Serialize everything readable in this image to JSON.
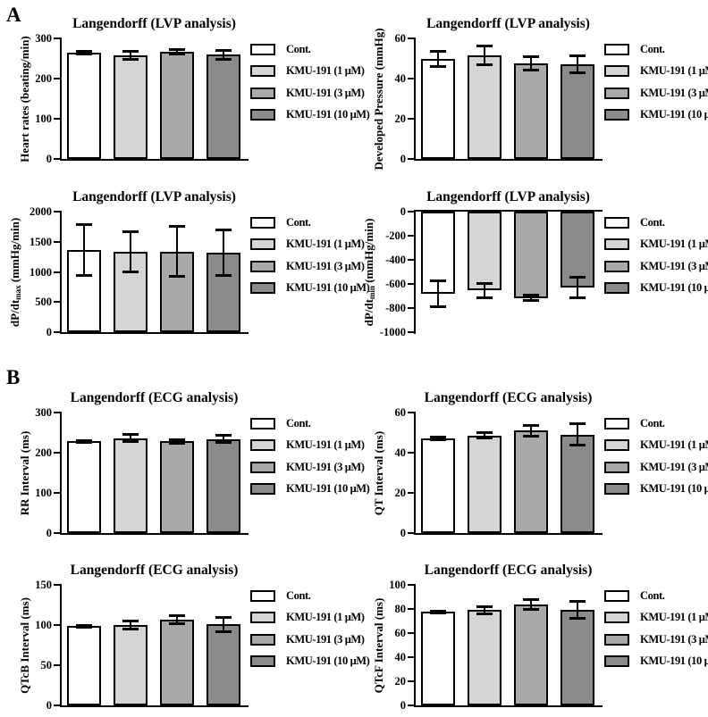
{
  "figure": {
    "panel_a_label": "A",
    "panel_b_label": "B"
  },
  "series": [
    {
      "name": "Cont.",
      "fill": "#FFFFFF"
    },
    {
      "name": "KMU-191 (1 μM)",
      "fill": "#D5D5D5"
    },
    {
      "name": "KMU-191 (3 μM)",
      "fill": "#A9A9A9"
    },
    {
      "name": "KMU-191 (10 μM)",
      "fill": "#8B8B8B"
    }
  ],
  "style": {
    "bar_border_color": "#000000",
    "axis_color": "#000000",
    "background": "#FFFFFF",
    "legend_position": "right",
    "grid": "off"
  },
  "chart_data": [
    {
      "id": "heart-rate",
      "panel": "A",
      "type": "bar",
      "title": "Langendorff (LVP analysis)",
      "ylabel_parts": [
        {
          "t": "Heart rates (beating/min)"
        }
      ],
      "ylabel_text": "Heart rates (beating/min)",
      "ylim": [
        0,
        300
      ],
      "yticks": [
        0,
        100,
        200,
        300
      ],
      "categories": [
        "Cont.",
        "KMU-191 (1 μM)",
        "KMU-191 (3 μM)",
        "KMU-191 (10 μM)"
      ],
      "values": [
        265,
        258,
        266,
        259
      ],
      "errors": [
        4,
        12,
        7,
        12
      ]
    },
    {
      "id": "developed-pressure",
      "panel": "A",
      "type": "bar",
      "title": "Langendorff (LVP analysis)",
      "ylabel_parts": [
        {
          "t": "Developed Pressure (mmHg)"
        }
      ],
      "ylabel_text": "Developed Pressure (mmHg)",
      "ylim": [
        0,
        60
      ],
      "yticks": [
        0,
        20,
        40,
        60
      ],
      "categories": [
        "Cont.",
        "KMU-191 (1 μM)",
        "KMU-191 (3 μM)",
        "KMU-191 (10 μM)"
      ],
      "values": [
        50,
        51.5,
        47.5,
        47
      ],
      "errors": [
        4,
        5,
        3.5,
        4.5
      ]
    },
    {
      "id": "dpdt-max",
      "panel": "A",
      "type": "bar",
      "title": "Langendorff (LVP analysis)",
      "ylabel_parts": [
        {
          "t": "dP/dt"
        },
        {
          "t": "max",
          "sub": true
        },
        {
          "t": " (mmHg/min)"
        }
      ],
      "ylabel_text": "dP/dt max (mmHg/min)",
      "ylim": [
        0,
        2000
      ],
      "yticks": [
        0,
        500,
        1000,
        1500,
        2000
      ],
      "categories": [
        "Cont.",
        "KMU-191 (1 μM)",
        "KMU-191 (3 μM)",
        "KMU-191 (10 μM)"
      ],
      "values": [
        1360,
        1335,
        1340,
        1320
      ],
      "errors": [
        430,
        335,
        420,
        380
      ]
    },
    {
      "id": "dpdt-min",
      "panel": "A",
      "type": "bar",
      "title": "Langendorff (LVP analysis)",
      "ylabel_parts": [
        {
          "t": "dP/dt"
        },
        {
          "t": "min",
          "sub": true
        },
        {
          "t": " (mmHg/min)"
        }
      ],
      "ylabel_text": "dP/dt min (mmHg/min)",
      "ylim": [
        -1000,
        0
      ],
      "yticks": [
        0,
        -200,
        -400,
        -600,
        -800,
        -1000
      ],
      "categories": [
        "Cont.",
        "KMU-191 (1 μM)",
        "KMU-191 (3 μM)",
        "KMU-191 (10 μM)"
      ],
      "values": [
        -680,
        -655,
        -715,
        -632
      ],
      "errors": [
        112,
        62,
        25,
        88
      ]
    },
    {
      "id": "rr-interval",
      "panel": "B",
      "type": "bar",
      "title": "Langendorff (ECG analysis)",
      "ylabel_parts": [
        {
          "t": "RR Interval (ms)"
        }
      ],
      "ylabel_text": "RR Interval (ms)",
      "ylim": [
        0,
        300
      ],
      "yticks": [
        0,
        100,
        200,
        300
      ],
      "categories": [
        "Cont.",
        "KMU-191 (1 μM)",
        "KMU-191 (3 μM)",
        "KMU-191 (10 μM)"
      ],
      "values": [
        228,
        236,
        228,
        234
      ],
      "errors": [
        3,
        10,
        5,
        10
      ]
    },
    {
      "id": "qt-interval",
      "panel": "B",
      "type": "bar",
      "title": "Langendorff (ECG analysis)",
      "ylabel_parts": [
        {
          "t": "QT Interval (ms)"
        }
      ],
      "ylabel_text": "QT Interval (ms)",
      "ylim": [
        0,
        60
      ],
      "yticks": [
        0,
        20,
        40,
        60
      ],
      "categories": [
        "Cont.",
        "KMU-191 (1 μM)",
        "KMU-191 (3 μM)",
        "KMU-191 (10 μM)"
      ],
      "values": [
        47.2,
        48.6,
        51,
        49
      ],
      "errors": [
        0.8,
        1.5,
        3,
        5.5
      ]
    },
    {
      "id": "qtcb-interval",
      "panel": "B",
      "type": "bar",
      "title": "Langendorff (ECG analysis)",
      "ylabel_parts": [
        {
          "t": "QTcB Interval (ms)"
        }
      ],
      "ylabel_text": "QTcB Interval (ms)",
      "ylim": [
        0,
        150
      ],
      "yticks": [
        0,
        50,
        100,
        150
      ],
      "categories": [
        "Cont.",
        "KMU-191 (1 μM)",
        "KMU-191 (3 μM)",
        "KMU-191 (10 μM)"
      ],
      "values": [
        98.5,
        100.5,
        106.5,
        101
      ],
      "errors": [
        1.5,
        5.5,
        5.5,
        9.5
      ]
    },
    {
      "id": "qtcf-interval",
      "panel": "B",
      "type": "bar",
      "title": "Langendorff (ECG analysis)",
      "ylabel_parts": [
        {
          "t": "QTcF Interval (ms)"
        }
      ],
      "ylabel_text": "QTcF Interval (ms)",
      "ylim": [
        0,
        100
      ],
      "yticks": [
        0,
        20,
        40,
        60,
        80,
        100
      ],
      "categories": [
        "Cont.",
        "KMU-191 (1 μM)",
        "KMU-191 (3 μM)",
        "KMU-191 (10 μM)"
      ],
      "values": [
        77.5,
        79,
        83.5,
        79.5
      ],
      "errors": [
        1,
        3.5,
        4.5,
        7.5
      ]
    }
  ]
}
